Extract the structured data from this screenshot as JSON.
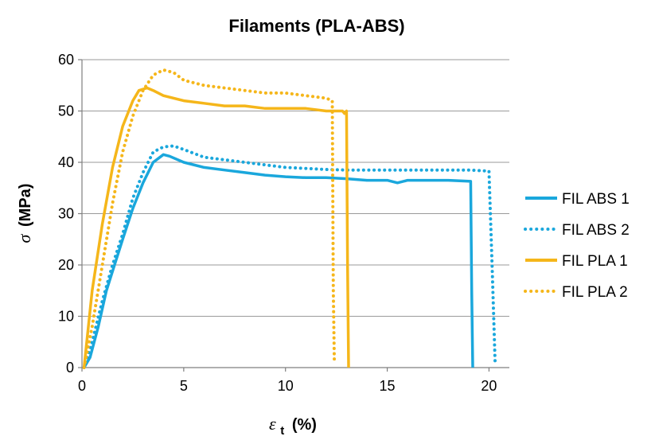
{
  "chart_data": {
    "type": "line",
    "title": "Filaments (PLA-ABS)",
    "xlabel": {
      "symbol": "ε",
      "subscript": "t",
      "unit": "(%)"
    },
    "ylabel": {
      "symbol": "σ",
      "unit": "(MPa)"
    },
    "xlim": [
      0,
      21
    ],
    "ylim": [
      0,
      60
    ],
    "xticks": [
      0,
      5,
      10,
      15,
      20
    ],
    "yticks": [
      0,
      10,
      20,
      30,
      40,
      50,
      60
    ],
    "grid": "horizontal",
    "legend_position": "right",
    "series": [
      {
        "name": "FIL ABS 1",
        "color": "#1AA7DC",
        "style": "solid",
        "x": [
          0.1,
          0.4,
          0.8,
          1.2,
          1.6,
          2.0,
          2.5,
          3.0,
          3.5,
          4.0,
          4.3,
          5.0,
          6.0,
          7.0,
          8.0,
          9.0,
          10.0,
          11.0,
          12.0,
          13.0,
          14.0,
          15.0,
          15.5,
          16.0,
          17.0,
          18.0,
          19.1,
          19.15,
          19.2
        ],
        "y": [
          0,
          2,
          8,
          15,
          20,
          25,
          31,
          36,
          40,
          41.5,
          41.2,
          40.0,
          39.0,
          38.5,
          38.0,
          37.5,
          37.2,
          37.0,
          37.0,
          36.8,
          36.5,
          36.5,
          36.0,
          36.5,
          36.5,
          36.5,
          36.3,
          15,
          0
        ]
      },
      {
        "name": "FIL ABS 2",
        "color": "#1AA7DC",
        "style": "dotted",
        "x": [
          0.1,
          0.5,
          1.0,
          1.5,
          2.0,
          2.5,
          3.0,
          3.5,
          4.0,
          4.5,
          5.0,
          6.0,
          7.0,
          8.0,
          9.0,
          10.0,
          11.0,
          12.0,
          13.0,
          14.0,
          15.0,
          16.0,
          17.0,
          18.0,
          19.0,
          20.0,
          20.15,
          20.3
        ],
        "y": [
          0,
          5,
          13,
          20,
          26,
          33,
          38,
          42,
          43,
          43.2,
          42.5,
          41,
          40.5,
          40,
          39.5,
          39,
          38.8,
          38.6,
          38.5,
          38.5,
          38.5,
          38.5,
          38.5,
          38.5,
          38.5,
          38.3,
          20,
          1
        ]
      },
      {
        "name": "FIL PLA 1",
        "color": "#F5B61A",
        "style": "solid",
        "x": [
          0.1,
          0.5,
          1.0,
          1.5,
          2.0,
          2.5,
          2.8,
          3.2,
          3.5,
          4.0,
          5.0,
          6.0,
          7.0,
          8.0,
          9.0,
          10.0,
          11.0,
          12.0,
          12.8,
          12.9,
          13.0,
          13.05,
          13.1
        ],
        "y": [
          0,
          15,
          28,
          39,
          47,
          52,
          54,
          54.5,
          54,
          53,
          52,
          51.5,
          51,
          51,
          50.5,
          50.5,
          50.5,
          50,
          50,
          49.5,
          50,
          20,
          0
        ]
      },
      {
        "name": "FIL PLA 2",
        "color": "#F5B61A",
        "style": "dotted",
        "x": [
          0.1,
          0.5,
          1.0,
          1.5,
          2.0,
          2.5,
          3.0,
          3.5,
          4.0,
          4.5,
          5.0,
          6.0,
          7.0,
          8.0,
          9.0,
          10.0,
          11.0,
          12.0,
          12.3,
          12.35,
          12.4
        ],
        "y": [
          0,
          8,
          20,
          32,
          42,
          49,
          54,
          57,
          58,
          57.5,
          56,
          55,
          54.5,
          54,
          53.5,
          53.5,
          53,
          52.5,
          52,
          15,
          1
        ]
      }
    ]
  }
}
